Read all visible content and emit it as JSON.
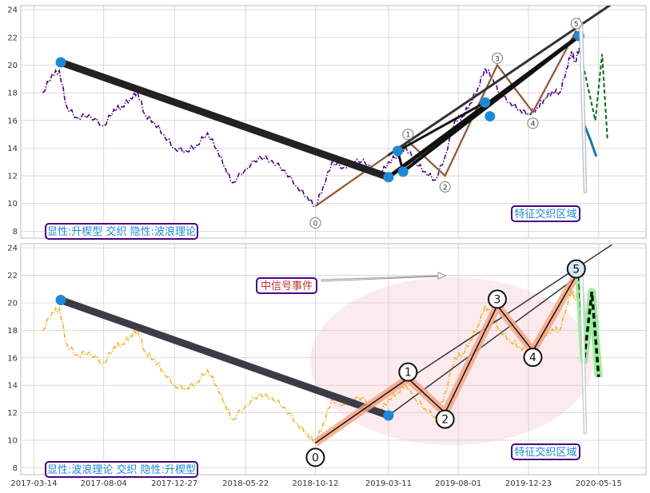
{
  "chart_data": [
    {
      "type": "line",
      "panel": "top",
      "title": "",
      "ylim": [
        7.5,
        24.3
      ],
      "y_ticks": [
        "8",
        "10",
        "12",
        "14",
        "16",
        "18",
        "20",
        "22",
        "24"
      ],
      "grid": true,
      "price_series": {
        "color": "#4b0082",
        "style": "dash-dot",
        "points": [
          [
            "2017-04-01",
            18.0
          ],
          [
            "2017-04-20",
            19.3
          ],
          [
            "2017-05-05",
            19.6
          ],
          [
            "2017-05-20",
            17.0
          ],
          [
            "2017-06-10",
            16.2
          ],
          [
            "2017-07-05",
            16.4
          ],
          [
            "2017-08-04",
            15.6
          ],
          [
            "2017-08-25",
            16.8
          ],
          [
            "2017-09-10",
            17.0
          ],
          [
            "2017-09-28",
            17.6
          ],
          [
            "2017-10-12",
            18.1
          ],
          [
            "2017-10-28",
            16.4
          ],
          [
            "2017-11-15",
            15.9
          ],
          [
            "2017-12-05",
            15.0
          ],
          [
            "2017-12-27",
            14.0
          ],
          [
            "2018-01-20",
            13.8
          ],
          [
            "2018-02-10",
            14.2
          ],
          [
            "2018-03-05",
            15.1
          ],
          [
            "2018-03-25",
            13.9
          ],
          [
            "2018-04-10",
            12.6
          ],
          [
            "2018-04-25",
            11.5
          ],
          [
            "2018-05-22",
            12.5
          ],
          [
            "2018-06-20",
            13.4
          ],
          [
            "2018-07-15",
            13.1
          ],
          [
            "2018-08-10",
            12.4
          ],
          [
            "2018-09-05",
            11.2
          ],
          [
            "2018-09-25",
            10.5
          ],
          [
            "2018-10-12",
            9.8
          ],
          [
            "2018-10-28",
            11.2
          ],
          [
            "2018-11-15",
            13.0
          ],
          [
            "2018-12-10",
            12.6
          ],
          [
            "2019-01-05",
            13.2
          ],
          [
            "2019-02-01",
            12.8
          ],
          [
            "2019-02-20",
            12.0
          ],
          [
            "2019-03-11",
            13.0
          ],
          [
            "2019-03-30",
            13.5
          ],
          [
            "2019-04-15",
            14.1
          ],
          [
            "2019-05-05",
            13.0
          ],
          [
            "2019-05-25",
            12.3
          ],
          [
            "2019-06-15",
            11.7
          ],
          [
            "2019-07-05",
            13.4
          ],
          [
            "2019-07-25",
            16.0
          ],
          [
            "2019-08-10",
            16.3
          ],
          [
            "2019-08-25",
            17.2
          ],
          [
            "2019-09-10",
            18.3
          ],
          [
            "2019-09-25",
            19.8
          ],
          [
            "2019-10-10",
            19.1
          ],
          [
            "2019-10-25",
            18.0
          ],
          [
            "2019-11-15",
            17.3
          ],
          [
            "2019-12-05",
            16.8
          ],
          [
            "2019-12-23",
            16.5
          ],
          [
            "2020-01-10",
            16.9
          ],
          [
            "2020-01-25",
            17.6
          ],
          [
            "2020-02-10",
            18.1
          ],
          [
            "2020-02-25",
            18.0
          ],
          [
            "2020-03-10",
            19.7
          ],
          [
            "2020-03-20",
            21.0
          ],
          [
            "2020-03-28",
            20.2
          ],
          [
            "2020-04-05",
            21.3
          ],
          [
            "2020-04-12",
            20.4
          ]
        ]
      },
      "wave_labels": [
        {
          "label": "0",
          "x": "2018-10-12",
          "y": 8.6
        },
        {
          "label": "1",
          "x": "2019-04-20",
          "y": 15.0
        },
        {
          "label": "2",
          "x": "2019-07-05",
          "y": 11.2
        },
        {
          "label": "3",
          "x": "2019-10-20",
          "y": 20.5
        },
        {
          "label": "4",
          "x": "2020-01-01",
          "y": 15.8
        },
        {
          "label": "5",
          "x": "2020-03-30",
          "y": 23.0
        }
      ],
      "text_boxes": [
        {
          "name": "top-method-label",
          "text": "显性:升楔型 交织 隐性:波浪理论",
          "corner": "bottom-left"
        },
        {
          "name": "top-zone-label",
          "text": "特征交织区域",
          "corner": "bottom-right"
        }
      ]
    },
    {
      "type": "line",
      "panel": "bottom",
      "title": "",
      "ylim": [
        7.5,
        24.3
      ],
      "y_ticks": [
        "8",
        "10",
        "12",
        "14",
        "16",
        "18",
        "20",
        "22",
        "24"
      ],
      "x_ticks": [
        "2017-03-14",
        "2017-08-04",
        "2017-12-27",
        "2018-05-22",
        "2018-10-12",
        "2019-03-11",
        "2019-08-01",
        "2019-12-23",
        "2020-05-15"
      ],
      "grid": true,
      "price_series": {
        "color": "#f0b429",
        "style": "dash-dot",
        "same_as": "top"
      },
      "wave_points": [
        {
          "label": "0",
          "x": "2018-10-12",
          "y": 9.8
        },
        {
          "label": "1",
          "x": "2019-04-20",
          "y": 14.5
        },
        {
          "label": "2",
          "x": "2019-07-05",
          "y": 12.0
        },
        {
          "label": "3",
          "x": "2019-10-20",
          "y": 19.8
        },
        {
          "label": "4",
          "x": "2020-01-01",
          "y": 16.5
        },
        {
          "label": "5",
          "x": "2020-03-30",
          "y": 22.0
        }
      ],
      "text_boxes": [
        {
          "name": "signal-event-label",
          "text": "中信号事件",
          "corner": "upper-middle"
        },
        {
          "name": "bottom-method-label",
          "text": "显性:波浪理论 交织 隐性:升楔型",
          "corner": "bottom-left"
        },
        {
          "name": "bottom-zone-label",
          "text": "特征交织区域",
          "corner": "bottom-right"
        }
      ]
    }
  ],
  "colors": {
    "grid": "#d0d0d0",
    "price_top": "#4b0082",
    "price_bottom": "#f0b429",
    "marker_blue": "#1f88d6",
    "box_border": "#4b0082",
    "box_text": "#1f88d6",
    "signal_text": "#c0392b",
    "wave_fill": "#f4a582",
    "ellipse": "#f4c6cf",
    "projection_green": "#90ee90"
  }
}
